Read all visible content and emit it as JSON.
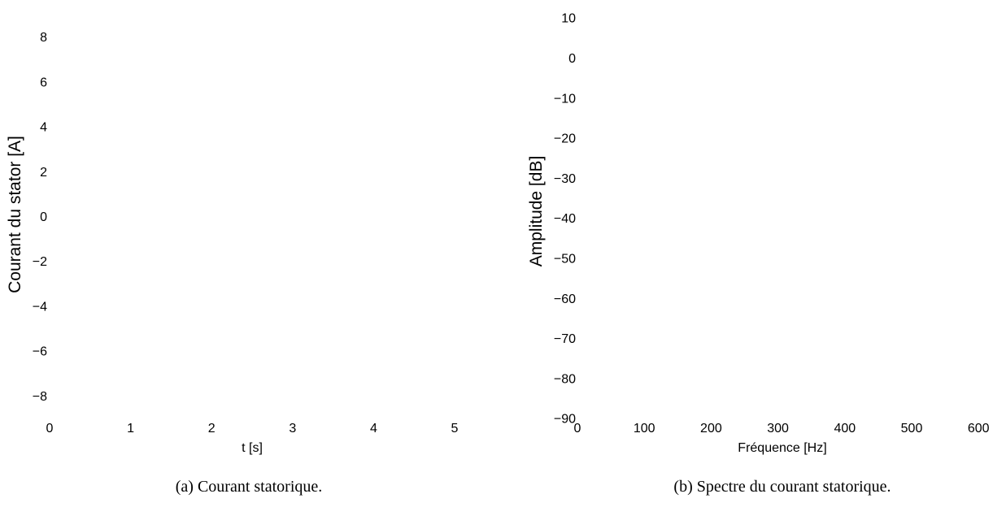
{
  "chart_data": [
    {
      "type": "line",
      "title": "",
      "xlabel": "t  [s]",
      "ylabel": "Courant du stator [A]",
      "xlim": [
        0,
        6
      ],
      "ylim": [
        -9,
        9
      ],
      "xticks": [
        "0",
        "1",
        "2",
        "3",
        "4",
        "5"
      ],
      "yticks": [
        "8",
        "6",
        "4",
        "2",
        "0",
        "−2",
        "−4",
        "−6",
        "−8"
      ],
      "ytick_values": [
        8,
        6,
        4,
        2,
        0,
        -2,
        -4,
        -6,
        -8
      ],
      "xtick_values": [
        0,
        1,
        2,
        3,
        4,
        5
      ],
      "series": [],
      "caption": "(a)  Courant statorique."
    },
    {
      "type": "line",
      "title": "",
      "xlabel": "Fréquence [Hz]",
      "ylabel": "Amplitude [dB]",
      "xlim": [
        0,
        600
      ],
      "ylim": [
        -90,
        10
      ],
      "xticks": [
        "0",
        "100",
        "200",
        "300",
        "400",
        "500",
        "600"
      ],
      "xtick_values": [
        0,
        100,
        200,
        300,
        400,
        500,
        600
      ],
      "yticks": [
        "10",
        "0",
        "−10",
        "−20",
        "−30",
        "−40",
        "−50",
        "−60",
        "−70",
        "−80",
        "−90"
      ],
      "ytick_values": [
        10,
        0,
        -10,
        -20,
        -30,
        -40,
        -50,
        -60,
        -70,
        -80,
        -90
      ],
      "series": [],
      "caption": "(b)  Spectre du courant statorique."
    }
  ]
}
